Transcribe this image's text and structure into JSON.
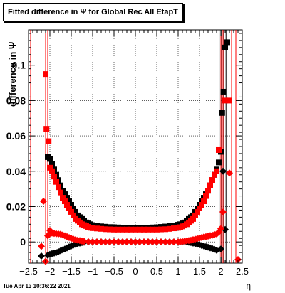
{
  "chart_data": {
    "type": "scatter",
    "title": "Fitted difference in  Ψ  for Global Rec All EtapT",
    "xlabel": "η",
    "ylabel": "difference in  Ψ",
    "xlim": [
      -2.5,
      2.5
    ],
    "ylim": [
      -0.012,
      0.12
    ],
    "xticks": [
      "−2.5",
      "−2",
      "−1.5",
      "−1",
      "−0.5",
      "0",
      "0.5",
      "1",
      "1.5",
      "2",
      "2.5"
    ],
    "yticks": [
      "0",
      "0.02",
      "0.04",
      "0.06",
      "0.08",
      "0.1"
    ],
    "grid": true,
    "colors": {
      "black": "#000000",
      "red": "#ff0000"
    },
    "series": [
      {
        "color": "#000000",
        "marker": "square",
        "x": [
          -2.05,
          -2.0,
          -1.95,
          -1.9,
          -1.85,
          -1.8,
          -1.75,
          -1.7,
          -1.65,
          -1.6,
          -1.55,
          -1.5,
          -1.45,
          -1.4,
          -1.35,
          -1.3,
          -1.25,
          -1.2,
          -1.15,
          -1.1,
          -1.05,
          -1.0,
          -0.9,
          -0.8,
          -0.7,
          -0.6,
          -0.5,
          -0.4,
          -0.3,
          -0.2,
          -0.1,
          0,
          0.1,
          0.2,
          0.3,
          0.4,
          0.5,
          0.6,
          0.7,
          0.8,
          0.9,
          1.0,
          1.05,
          1.1,
          1.15,
          1.2,
          1.25,
          1.3,
          1.35,
          1.4,
          1.45,
          1.5,
          1.55,
          1.6,
          1.65,
          1.7,
          1.75,
          1.8,
          1.85,
          1.9,
          1.95,
          2.0,
          2.03,
          2.06,
          2.1,
          2.15
        ],
        "y": [
          0.048,
          0.047,
          0.044,
          0.041,
          0.038,
          0.035,
          0.032,
          0.029,
          0.027,
          0.025,
          0.023,
          0.021,
          0.019,
          0.017,
          0.015,
          0.014,
          0.013,
          0.012,
          0.011,
          0.0105,
          0.01,
          0.0095,
          0.009,
          0.0088,
          0.0086,
          0.0084,
          0.0083,
          0.0082,
          0.0081,
          0.008,
          0.008,
          0.008,
          0.008,
          0.008,
          0.0081,
          0.0082,
          0.0083,
          0.0085,
          0.0087,
          0.009,
          0.0093,
          0.0097,
          0.01,
          0.0105,
          0.011,
          0.0118,
          0.013,
          0.014,
          0.015,
          0.017,
          0.019,
          0.021,
          0.023,
          0.025,
          0.027,
          0.029,
          0.032,
          0.035,
          0.038,
          0.041,
          0.045,
          0.051,
          0.073,
          0.085,
          0.11,
          0.113
        ]
      },
      {
        "color": "#000000",
        "marker": "diamond",
        "x": [
          -2.2,
          -2.05,
          -2.0,
          -1.95,
          -1.9,
          -1.85,
          -1.8,
          -1.75,
          -1.7,
          -1.65,
          -1.6,
          -1.55,
          -1.5,
          -1.45,
          -1.4,
          -1.35,
          -1.3,
          -1.25,
          -1.2,
          -1.1,
          -1.0,
          -0.9,
          -0.8,
          -0.7,
          -0.6,
          -0.5,
          -0.4,
          -0.3,
          -0.2,
          -0.1,
          0,
          0.1,
          0.2,
          0.3,
          0.4,
          0.5,
          0.6,
          0.7,
          0.8,
          0.9,
          1.0,
          1.1,
          1.2,
          1.25,
          1.3,
          1.35,
          1.4,
          1.45,
          1.5,
          1.55,
          1.6,
          1.65,
          1.7,
          1.75,
          1.8,
          1.85,
          1.9,
          2.0,
          2.05,
          2.1
        ],
        "y": [
          -0.008,
          -0.0075,
          -0.007,
          -0.0066,
          -0.0063,
          -0.006,
          -0.0055,
          -0.005,
          -0.0045,
          -0.004,
          -0.0034,
          -0.0028,
          -0.0023,
          -0.0018,
          -0.0014,
          -0.001,
          -0.0007,
          -0.0004,
          -0.0002,
          0,
          0,
          0,
          0,
          0,
          0,
          0,
          0,
          0,
          0,
          0,
          0,
          0,
          0,
          0,
          0,
          0,
          0,
          0,
          0,
          0,
          0,
          0,
          0,
          -0.0002,
          -0.0004,
          -0.0007,
          -0.001,
          -0.0013,
          -0.0016,
          -0.002,
          -0.0023,
          -0.0027,
          -0.003,
          -0.0034,
          -0.0038,
          -0.0042,
          -0.0047,
          -0.004,
          0.04,
          0.007
        ]
      },
      {
        "color": "#ff0000",
        "marker": "square",
        "x": [
          -2.1,
          -2.08,
          -2.03,
          -2.0,
          -1.95,
          -1.9,
          -1.85,
          -1.8,
          -1.75,
          -1.7,
          -1.65,
          -1.6,
          -1.55,
          -1.5,
          -1.45,
          -1.4,
          -1.35,
          -1.3,
          -1.25,
          -1.2,
          -1.15,
          -1.1,
          -1.05,
          -1.0,
          -0.9,
          -0.8,
          -0.7,
          -0.6,
          -0.5,
          -0.4,
          -0.3,
          -0.2,
          -0.1,
          0,
          0.1,
          0.2,
          0.3,
          0.4,
          0.5,
          0.6,
          0.7,
          0.8,
          0.9,
          1.0,
          1.05,
          1.1,
          1.15,
          1.2,
          1.25,
          1.3,
          1.35,
          1.4,
          1.45,
          1.5,
          1.55,
          1.6,
          1.65,
          1.7,
          1.75,
          1.8,
          1.85,
          1.9,
          1.95,
          2.1,
          2.2
        ],
        "y": [
          0.095,
          0.064,
          0.057,
          0.042,
          0.04,
          0.037,
          0.034,
          0.031,
          0.028,
          0.025,
          0.023,
          0.021,
          0.019,
          0.017,
          0.015,
          0.013,
          0.012,
          0.011,
          0.01,
          0.0095,
          0.009,
          0.0085,
          0.008,
          0.0078,
          0.0076,
          0.0074,
          0.0072,
          0.0071,
          0.007,
          0.007,
          0.007,
          0.007,
          0.007,
          0.007,
          0.007,
          0.007,
          0.007,
          0.007,
          0.007,
          0.0071,
          0.0072,
          0.0074,
          0.0077,
          0.008,
          0.0083,
          0.0088,
          0.0093,
          0.01,
          0.011,
          0.012,
          0.013,
          0.015,
          0.017,
          0.019,
          0.021,
          0.023,
          0.026,
          0.029,
          0.032,
          0.035,
          0.038,
          0.04,
          0.052,
          0.08,
          0.08
        ]
      },
      {
        "color": "#ff0000",
        "marker": "diamond",
        "x": [
          -2.2,
          -2.15,
          -2.1,
          -2.05,
          -2.0,
          -1.95,
          -1.9,
          -1.85,
          -1.8,
          -1.75,
          -1.7,
          -1.65,
          -1.6,
          -1.55,
          -1.5,
          -1.45,
          -1.4,
          -1.35,
          -1.3,
          -1.25,
          -1.2,
          -1.1,
          -1.0,
          -0.9,
          -0.8,
          -0.7,
          -0.6,
          -0.5,
          -0.4,
          -0.3,
          -0.2,
          -0.1,
          0,
          0.1,
          0.2,
          0.3,
          0.4,
          0.5,
          0.6,
          0.7,
          0.8,
          0.9,
          1.0,
          1.05,
          1.1,
          1.15,
          1.2,
          1.25,
          1.3,
          1.35,
          1.4,
          1.45,
          1.5,
          1.55,
          1.6,
          1.65,
          1.7,
          1.75,
          1.8,
          1.85,
          1.9,
          1.95,
          2.0,
          2.05,
          2.2,
          2.4
        ],
        "y": [
          -0.0025,
          0.023,
          -0.011,
          0.0035,
          0.0065,
          0.005,
          0.0048,
          0.0046,
          0.0045,
          0.0044,
          0.004,
          0.0035,
          0.003,
          0.0025,
          0.002,
          0.0016,
          0.0013,
          0.001,
          0.0008,
          0.0005,
          0.0003,
          0.0001,
          0,
          0,
          0,
          0,
          0,
          0,
          0,
          0,
          0,
          0,
          0,
          0,
          0,
          0,
          0,
          0,
          0,
          0,
          0,
          0,
          0,
          0.0001,
          0.0002,
          0.0004,
          0.0006,
          0.0008,
          0.001,
          0.0013,
          0.0016,
          0.0019,
          0.0022,
          0.0025,
          0.0028,
          0.003,
          0.0033,
          0.0036,
          0.0038,
          0.0042,
          0.0045,
          0.0055,
          0.0075,
          0.017,
          0.039,
          -0.01
        ]
      }
    ],
    "vertical_lines": [
      {
        "x": -2.45,
        "color": "#ff0000"
      },
      {
        "x": -2.1,
        "color": "#ff0000"
      },
      {
        "x": -2.05,
        "color": "#ff0000"
      },
      {
        "x": 1.96,
        "color": "#000000"
      },
      {
        "x": 2.02,
        "color": "#000000"
      },
      {
        "x": 2.07,
        "color": "#000000"
      },
      {
        "x": 2.12,
        "color": "#000000"
      },
      {
        "x": 2.0,
        "color": "#ff0000"
      },
      {
        "x": 2.05,
        "color": "#ff0000"
      },
      {
        "x": 2.25,
        "color": "#ff0000"
      },
      {
        "x": 2.35,
        "color": "#ff0000"
      }
    ]
  },
  "footer": {
    "timestamp": "Tue Apr 13 10:36:22 2021"
  }
}
